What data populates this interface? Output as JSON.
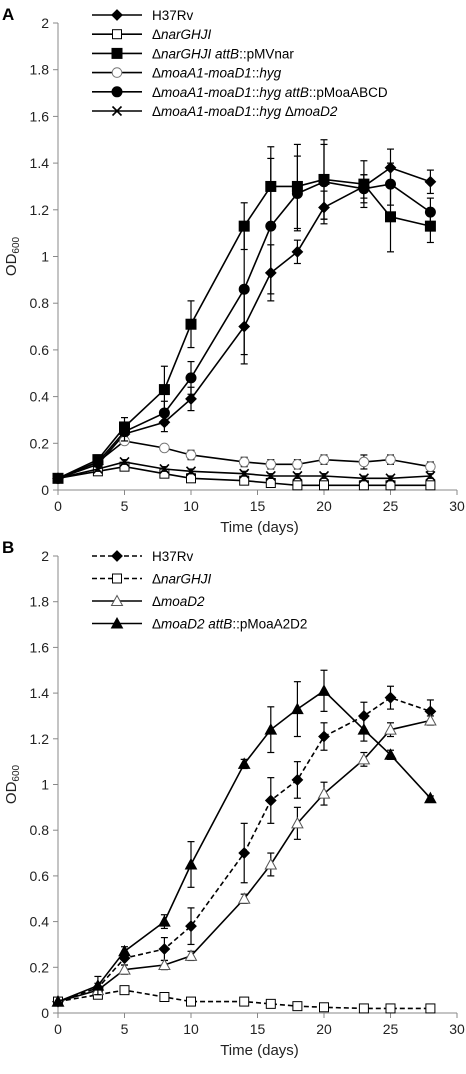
{
  "chart_data": [
    {
      "type": "line",
      "panel_label": "A",
      "xlabel": "Time (days)",
      "ylabel": "OD600",
      "ylabel_main": "OD",
      "ylabel_sub": "600",
      "xlim": [
        0,
        30
      ],
      "ylim": [
        0,
        2
      ],
      "xticks": [
        0,
        5,
        10,
        15,
        20,
        25,
        30
      ],
      "yticks": [
        0,
        0.2,
        0.4,
        0.6,
        0.8,
        1,
        1.2,
        1.4,
        1.6,
        1.8,
        2
      ],
      "grid": false,
      "legend_position": "top-right",
      "series": [
        {
          "name": "H37Rv",
          "name_parts": [
            {
              "t": "H37Rv",
              "i": false
            }
          ],
          "marker": "diamond",
          "line": "solid",
          "x": [
            0,
            3,
            5,
            8,
            10,
            14,
            16,
            18,
            20,
            23,
            25,
            28
          ],
          "y": [
            0.05,
            0.11,
            0.24,
            0.29,
            0.39,
            0.7,
            0.93,
            1.02,
            1.21,
            1.3,
            1.38,
            1.32
          ],
          "err": [
            0,
            0.02,
            0.03,
            0.04,
            0.05,
            0.16,
            0.12,
            0.05,
            0.07,
            0.05,
            0.08,
            0.05
          ]
        },
        {
          "name": "ΔnarGHJI",
          "name_parts": [
            {
              "t": "Δ",
              "i": false
            },
            {
              "t": "narGHJI",
              "i": true
            }
          ],
          "marker": "square-open",
          "line": "solid",
          "x": [
            0,
            3,
            5,
            8,
            10,
            14,
            16,
            18,
            20,
            23,
            25,
            28
          ],
          "y": [
            0.05,
            0.08,
            0.1,
            0.07,
            0.05,
            0.04,
            0.03,
            0.02,
            0.02,
            0.02,
            0.02,
            0.02
          ],
          "err": [
            0,
            0.01,
            0.01,
            0.01,
            0.01,
            0.01,
            0.01,
            0.01,
            0.01,
            0.01,
            0.01,
            0.01
          ]
        },
        {
          "name": "ΔnarGHJI attB::pMVnar",
          "name_parts": [
            {
              "t": "Δ",
              "i": false
            },
            {
              "t": "narGHJI attB",
              "i": true
            },
            {
              "t": "::pMVnar",
              "i": false
            }
          ],
          "marker": "square",
          "line": "solid",
          "x": [
            0,
            3,
            5,
            8,
            10,
            14,
            16,
            18,
            20,
            23,
            25,
            28
          ],
          "y": [
            0.05,
            0.13,
            0.27,
            0.43,
            0.71,
            1.13,
            1.3,
            1.3,
            1.33,
            1.31,
            1.17,
            1.13
          ],
          "err": [
            0,
            0.02,
            0.04,
            0.1,
            0.1,
            0.1,
            0.17,
            0.18,
            0.17,
            0.1,
            0.15,
            0.07
          ]
        },
        {
          "name": "ΔmoaA1-moaD1::hyg",
          "name_parts": [
            {
              "t": "Δ",
              "i": false
            },
            {
              "t": "moaA1-moaD1",
              "i": true
            },
            {
              "t": "::",
              "i": false
            },
            {
              "t": "hyg",
              "i": true
            }
          ],
          "marker": "circle-open",
          "line": "solid",
          "x": [
            0,
            3,
            5,
            8,
            10,
            14,
            16,
            18,
            20,
            23,
            25,
            28
          ],
          "y": [
            0.05,
            0.12,
            0.21,
            0.18,
            0.15,
            0.12,
            0.11,
            0.11,
            0.13,
            0.12,
            0.13,
            0.1
          ],
          "err": [
            0,
            0.01,
            0.01,
            0.01,
            0.02,
            0.02,
            0.02,
            0.02,
            0.02,
            0.03,
            0.02,
            0.02
          ]
        },
        {
          "name": "ΔmoaA1-moaD1::hyg attB::pMoaABCD",
          "name_parts": [
            {
              "t": "Δ",
              "i": false
            },
            {
              "t": "moaA1-moaD1",
              "i": true
            },
            {
              "t": "::",
              "i": false
            },
            {
              "t": "hyg attB",
              "i": true
            },
            {
              "t": "::pMoaABCD",
              "i": false
            }
          ],
          "marker": "circle",
          "line": "solid",
          "x": [
            0,
            3,
            5,
            8,
            10,
            14,
            16,
            18,
            20,
            23,
            25,
            28
          ],
          "y": [
            0.05,
            0.12,
            0.25,
            0.33,
            0.48,
            0.86,
            1.13,
            1.27,
            1.32,
            1.29,
            1.31,
            1.19
          ],
          "err": [
            0,
            0.02,
            0.04,
            0.05,
            0.07,
            0.28,
            0.29,
            0.16,
            0.16,
            0.06,
            0.09,
            0.06
          ]
        },
        {
          "name": "ΔmoaA1-moaD1::hyg ΔmoaD2",
          "name_parts": [
            {
              "t": "Δ",
              "i": false
            },
            {
              "t": "moaA1-moaD1",
              "i": true
            },
            {
              "t": "::",
              "i": false
            },
            {
              "t": "hyg",
              "i": true
            },
            {
              "t": " Δ",
              "i": false
            },
            {
              "t": "moaD2",
              "i": true
            }
          ],
          "marker": "x",
          "line": "solid",
          "x": [
            0,
            3,
            5,
            8,
            10,
            14,
            16,
            18,
            20,
            23,
            25,
            28
          ],
          "y": [
            0.05,
            0.09,
            0.12,
            0.09,
            0.08,
            0.07,
            0.06,
            0.06,
            0.06,
            0.05,
            0.05,
            0.06
          ],
          "err": [
            0,
            0.01,
            0.01,
            0.01,
            0.01,
            0.01,
            0.01,
            0.01,
            0.01,
            0.01,
            0.01,
            0.01
          ]
        }
      ]
    },
    {
      "type": "line",
      "panel_label": "B",
      "xlabel": "Time (days)",
      "ylabel": "OD600",
      "ylabel_main": "OD",
      "ylabel_sub": "600",
      "xlim": [
        0,
        30
      ],
      "ylim": [
        0,
        2
      ],
      "xticks": [
        0,
        5,
        10,
        15,
        20,
        25,
        30
      ],
      "yticks": [
        0,
        0.2,
        0.4,
        0.6,
        0.8,
        1,
        1.2,
        1.4,
        1.6,
        1.8,
        2
      ],
      "grid": false,
      "legend_position": "top-right",
      "series": [
        {
          "name": "H37Rv",
          "name_parts": [
            {
              "t": "H37Rv",
              "i": false
            }
          ],
          "marker": "diamond",
          "line": "dashed",
          "x": [
            0,
            3,
            5,
            8,
            10,
            14,
            16,
            18,
            20,
            23,
            25,
            28
          ],
          "y": [
            0.05,
            0.11,
            0.24,
            0.28,
            0.38,
            0.7,
            0.93,
            1.02,
            1.21,
            1.3,
            1.38,
            1.32
          ],
          "err": [
            0,
            0.02,
            0.03,
            0.05,
            0.08,
            0.13,
            0.1,
            0.08,
            0.06,
            0.06,
            0.05,
            0.05
          ]
        },
        {
          "name": "ΔnarGHJI",
          "name_parts": [
            {
              "t": "Δ",
              "i": false
            },
            {
              "t": "narGHJI",
              "i": true
            }
          ],
          "marker": "square-open",
          "line": "dashed",
          "x": [
            0,
            3,
            5,
            8,
            10,
            14,
            16,
            18,
            20,
            23,
            25,
            28
          ],
          "y": [
            0.05,
            0.08,
            0.1,
            0.07,
            0.05,
            0.05,
            0.04,
            0.03,
            0.025,
            0.02,
            0.02,
            0.02
          ],
          "err": [
            0,
            0.01,
            0.01,
            0.01,
            0.01,
            0.01,
            0.01,
            0.01,
            0.01,
            0.01,
            0.01,
            0.01
          ]
        },
        {
          "name": "ΔmoaD2",
          "name_parts": [
            {
              "t": "Δ",
              "i": false
            },
            {
              "t": "moaD2",
              "i": true
            }
          ],
          "marker": "triangle-open",
          "line": "solid",
          "x": [
            0,
            3,
            5,
            8,
            10,
            14,
            16,
            18,
            20,
            23,
            25,
            28
          ],
          "y": [
            0.05,
            0.1,
            0.19,
            0.21,
            0.25,
            0.5,
            0.65,
            0.83,
            0.96,
            1.11,
            1.24,
            1.28
          ],
          "err": [
            0,
            0.01,
            0.02,
            0.02,
            0.02,
            0.02,
            0.05,
            0.07,
            0.05,
            0.03,
            0.03,
            0.02
          ]
        },
        {
          "name": "ΔmoaD2 attB::pMoaA2D2",
          "name_parts": [
            {
              "t": "Δ",
              "i": false
            },
            {
              "t": "moaD2 attB",
              "i": true
            },
            {
              "t": "::pMoaA2D2",
              "i": false
            }
          ],
          "marker": "triangle",
          "line": "solid",
          "x": [
            0,
            3,
            5,
            8,
            10,
            14,
            16,
            18,
            20,
            23,
            25,
            28
          ],
          "y": [
            0.05,
            0.12,
            0.27,
            0.4,
            0.65,
            1.09,
            1.24,
            1.33,
            1.41,
            1.24,
            1.13,
            0.94
          ],
          "err": [
            0,
            0.04,
            0.02,
            0.03,
            0.1,
            0.02,
            0.1,
            0.12,
            0.09,
            0.05,
            0.02,
            0.01
          ]
        }
      ]
    }
  ]
}
